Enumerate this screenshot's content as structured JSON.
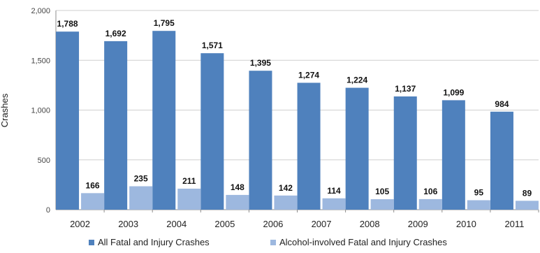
{
  "chart_data": {
    "type": "bar",
    "categories": [
      "2002",
      "2003",
      "2004",
      "2005",
      "2006",
      "2007",
      "2008",
      "2009",
      "2010",
      "2011"
    ],
    "series": [
      {
        "name": "All Fatal and Injury Crashes",
        "values": [
          1788,
          1692,
          1795,
          1571,
          1395,
          1274,
          1224,
          1137,
          1099,
          984
        ],
        "labels": [
          "1,788",
          "1,692",
          "1,795",
          "1,571",
          "1,395",
          "1,274",
          "1,224",
          "1,137",
          "1,099",
          "984"
        ],
        "color": "#4f81bd"
      },
      {
        "name": "Alcohol-involved Fatal and Injury Crashes",
        "values": [
          166,
          235,
          211,
          148,
          142,
          114,
          105,
          106,
          95,
          89
        ],
        "labels": [
          "166",
          "235",
          "211",
          "148",
          "142",
          "114",
          "105",
          "106",
          "95",
          "89"
        ],
        "color": "#9db8df"
      }
    ],
    "ylabel": "Crashes",
    "ylim": [
      0,
      2000
    ],
    "yticks": [
      0,
      500,
      1000,
      1500,
      2000
    ],
    "ytick_labels": [
      "0",
      "500",
      "1,000",
      "1,500",
      "2,000"
    ],
    "grid": true,
    "legend": "bottom"
  }
}
